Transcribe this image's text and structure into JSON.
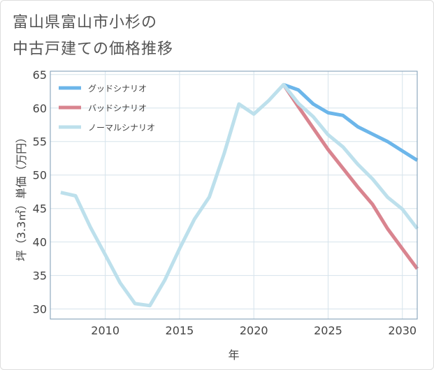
{
  "title": {
    "line1": "富山県富山市小杉の",
    "line2": "中古戸建ての価格推移"
  },
  "chart_data": {
    "type": "line",
    "xlabel": "年",
    "ylabel": "坪（3.3㎡）単価（万円）",
    "xlim": [
      2006.3,
      2031
    ],
    "ylim": [
      28.5,
      65.5
    ],
    "xticks": [
      2010,
      2015,
      2020,
      2025,
      2030
    ],
    "yticks": [
      30,
      35,
      40,
      45,
      50,
      55,
      60,
      65
    ],
    "grid": true,
    "legend_position": "top-left",
    "series": [
      {
        "name": "グッドシナリオ",
        "color": "#6cb6ea",
        "x": [
          2022,
          2023,
          2024,
          2025,
          2026,
          2027,
          2028,
          2029,
          2030,
          2031
        ],
        "values": [
          63.5,
          62.7,
          60.6,
          59.3,
          58.9,
          57.2,
          56.1,
          55.0,
          53.6,
          52.2
        ]
      },
      {
        "name": "バッドシナリオ",
        "color": "#d9848f",
        "x": [
          2022,
          2023,
          2024,
          2025,
          2026,
          2027,
          2028,
          2029,
          2030,
          2031
        ],
        "values": [
          63.5,
          60.2,
          57.0,
          53.8,
          51.0,
          48.2,
          45.6,
          42.0,
          39.0,
          36.0
        ]
      },
      {
        "name": "ノーマルシナリオ",
        "color": "#bde0ec",
        "x": [
          2007,
          2008,
          2009,
          2010,
          2011,
          2012,
          2013,
          2014,
          2015,
          2016,
          2017,
          2018,
          2019,
          2020,
          2021,
          2022,
          2023,
          2024,
          2025,
          2026,
          2027,
          2028,
          2029,
          2030,
          2031
        ],
        "values": [
          47.4,
          46.9,
          42.2,
          38.1,
          33.9,
          30.8,
          30.5,
          34.3,
          39.0,
          43.4,
          46.7,
          53.2,
          60.6,
          59.1,
          61.1,
          63.5,
          60.7,
          58.7,
          56.0,
          54.2,
          51.6,
          49.4,
          46.7,
          44.9,
          42.0
        ]
      }
    ]
  }
}
